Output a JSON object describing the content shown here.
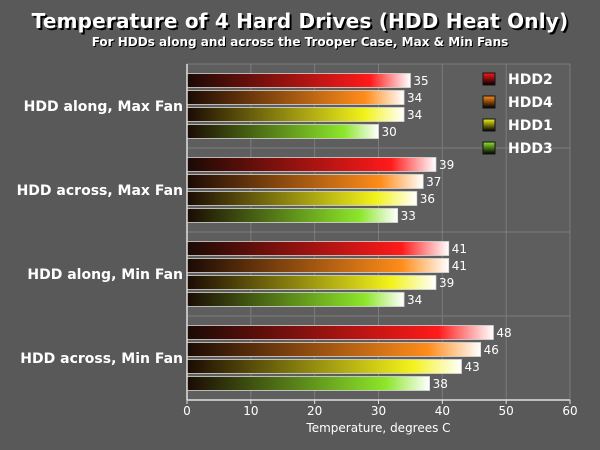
{
  "chart_data": {
    "type": "bar",
    "orientation": "horizontal",
    "title": "Temperature of 4 Hard Drives (HDD Heat Only)",
    "subtitle": "For HDDs along and across the Trooper Case, Max & Min Fans",
    "xlabel": "Temperature, degrees C",
    "ylabel": "",
    "xlim": [
      0,
      60
    ],
    "ticks": [
      "0",
      "10",
      "20",
      "30",
      "40",
      "50",
      "60"
    ],
    "grid": true,
    "legend_position": "top-right",
    "categories": [
      "HDD along, Max Fan",
      "HDD across, Max Fan",
      "HDD along, Min Fan",
      "HDD across, Min Fan"
    ],
    "series": [
      {
        "name": "HDD2",
        "color": "#ff1a1a",
        "values": [
          35,
          39,
          41,
          48
        ]
      },
      {
        "name": "HDD4",
        "color": "#ff8c1a",
        "values": [
          34,
          37,
          41,
          46
        ]
      },
      {
        "name": "HDD1",
        "color": "#f2f21a",
        "values": [
          34,
          36,
          39,
          43
        ]
      },
      {
        "name": "HDD3",
        "color": "#8ce62a",
        "values": [
          30,
          33,
          34,
          38
        ]
      }
    ]
  }
}
